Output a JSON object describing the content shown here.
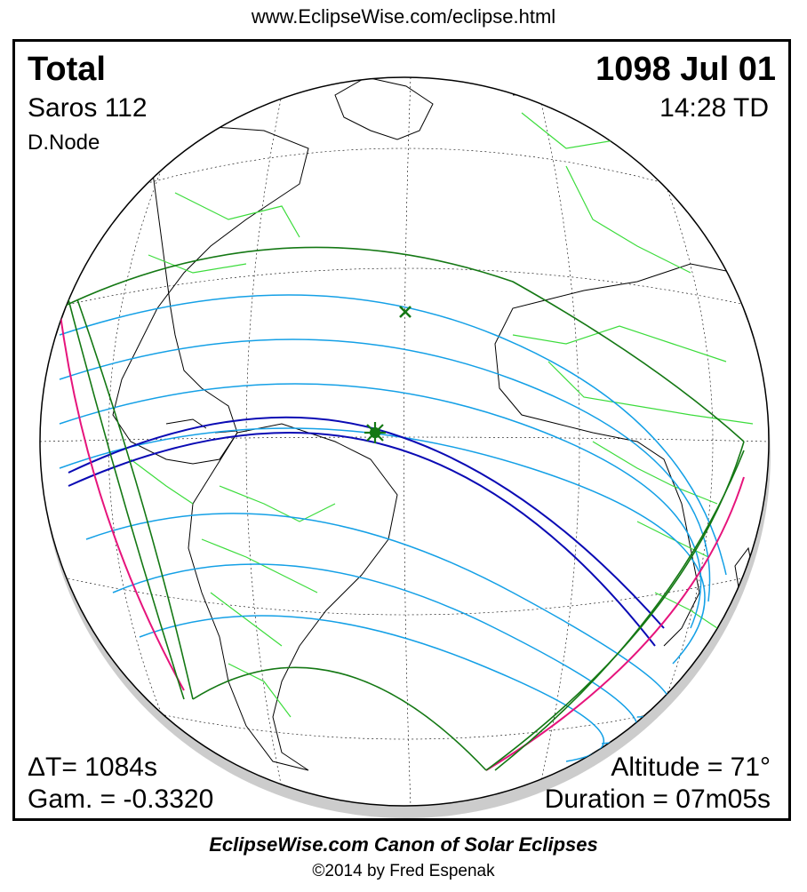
{
  "header": {
    "url": "www.EclipseWise.com/eclipse.html"
  },
  "eclipse": {
    "type": "Total",
    "date": "1098 Jul 01",
    "saros": "Saros 112",
    "time": "14:28 TD",
    "node": "D.Node",
    "delta_t": "ΔT=   1084s",
    "gamma": "Gam. = -0.3320",
    "altitude": "Altitude = 71°",
    "duration": "Duration = 07m05s"
  },
  "footer": {
    "canon": "EclipseWise.com Canon of Solar Eclipses",
    "copyright": "©2014 by Fred Espenak"
  },
  "colors": {
    "total_path": "#0a0ab4",
    "penumbral_lines": "#14a0e6",
    "limits": "#147814",
    "rise_set": "#e6147c",
    "borders": "#3cdc3c",
    "coast": "#000000",
    "shadow": "#cccccc"
  },
  "markers": {
    "greatest_eclipse": "star-icon",
    "subsolar_point": "cross-icon"
  }
}
